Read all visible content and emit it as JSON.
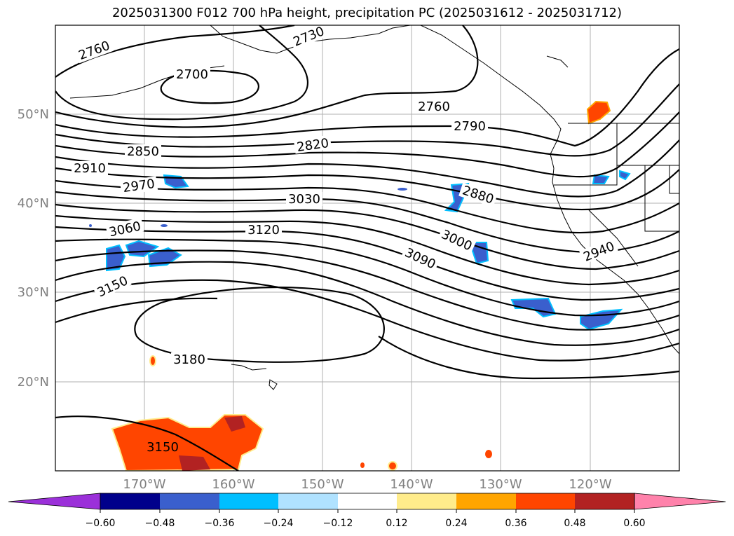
{
  "title": "2025031300 F012 700 hPa height, precipitation PC (2025031612 - 2025031712)",
  "lat_labels": [
    "50°N",
    "40°N",
    "30°N",
    "20°N"
  ],
  "lon_labels": [
    "170°W",
    "160°W",
    "150°W",
    "140°W",
    "130°W",
    "120°W"
  ],
  "contour_labels": [
    "2760",
    "2730",
    "2700",
    "2760",
    "2790",
    "2820",
    "2850",
    "2910",
    "2970",
    "2880",
    "3030",
    "3060",
    "3120",
    "3000",
    "3090",
    "2940",
    "3150",
    "3180",
    "3150"
  ],
  "colorbar": {
    "colors": [
      "#9b30d9",
      "#00008b",
      "#3a5fcd",
      "#00bfff",
      "#b0e2ff",
      "#ffffff",
      "#ffec8b",
      "#ffa500",
      "#ff4500",
      "#b22222",
      "#ff82ab"
    ],
    "tick_labels": [
      "−0.60",
      "−0.48",
      "−0.36",
      "−0.24",
      "−0.12",
      "0.12",
      "0.24",
      "0.36",
      "0.48",
      "0.60"
    ]
  }
}
